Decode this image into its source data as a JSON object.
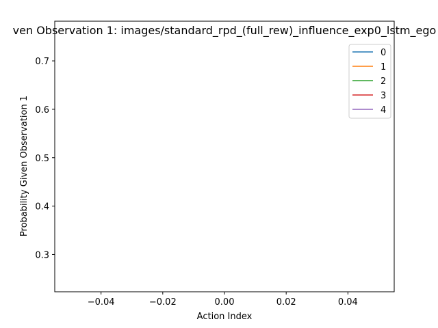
{
  "chart_data": {
    "type": "line",
    "title": "ven Observation 1: images/standard_rpd_(full_rew)_influence_exp0_lstm_ego",
    "xlabel": "Action Index",
    "ylabel": "Probability Given Observation 1",
    "xlim": [
      -0.055,
      0.055
    ],
    "ylim": [
      0.223,
      0.782
    ],
    "xticks": [
      -0.04,
      -0.02,
      0.0,
      0.02,
      0.04
    ],
    "xtick_labels": [
      "−0.04",
      "−0.02",
      "0.00",
      "0.02",
      "0.04"
    ],
    "yticks": [
      0.3,
      0.4,
      0.5,
      0.6,
      0.7
    ],
    "ytick_labels": [
      "0.3",
      "0.4",
      "0.5",
      "0.6",
      "0.7"
    ],
    "grid": false,
    "legend_position": "upper right",
    "series": [
      {
        "name": "0",
        "color": "#1f77b4",
        "x": [],
        "y": []
      },
      {
        "name": "1",
        "color": "#ff7f0e",
        "x": [],
        "y": []
      },
      {
        "name": "2",
        "color": "#2ca02c",
        "x": [],
        "y": []
      },
      {
        "name": "3",
        "color": "#d62728",
        "x": [],
        "y": []
      },
      {
        "name": "4",
        "color": "#9467bd",
        "x": [],
        "y": []
      }
    ]
  }
}
